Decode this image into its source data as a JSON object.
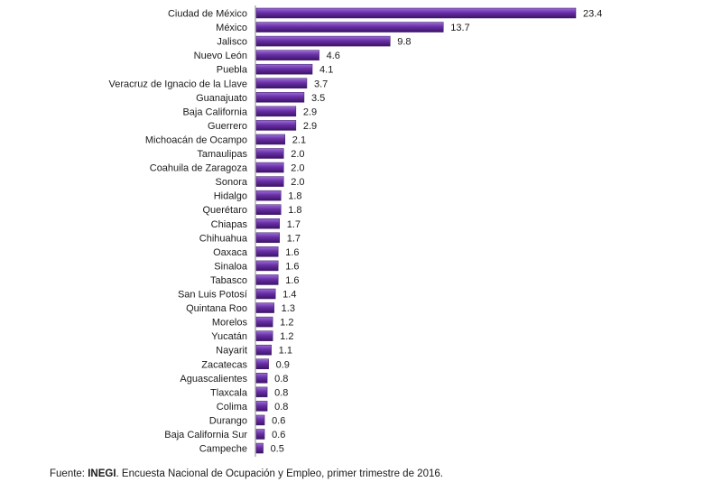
{
  "chart_data": {
    "type": "bar",
    "orientation": "horizontal",
    "categories": [
      "Ciudad de México",
      "México",
      "Jalisco",
      "Nuevo León",
      "Puebla",
      "Veracruz de Ignacio de la Llave",
      "Guanajuato",
      "Baja California",
      "Guerrero",
      "Michoacán de Ocampo",
      "Tamaulipas",
      "Coahuila de Zaragoza",
      "Sonora",
      "Hidalgo",
      "Querétaro",
      "Chiapas",
      "Chihuahua",
      "Oaxaca",
      "Sinaloa",
      "Tabasco",
      "San Luis Potosí",
      "Quintana Roo",
      "Morelos",
      "Yucatán",
      "Nayarit",
      "Zacatecas",
      "Aguascalientes",
      "Tlaxcala",
      "Colima",
      "Durango",
      "Baja California Sur",
      "Campeche"
    ],
    "values": [
      23.4,
      13.7,
      9.8,
      4.6,
      4.1,
      3.7,
      3.5,
      2.9,
      2.9,
      2.1,
      2.0,
      2.0,
      2.0,
      1.8,
      1.8,
      1.7,
      1.7,
      1.6,
      1.6,
      1.6,
      1.4,
      1.3,
      1.2,
      1.2,
      1.1,
      0.9,
      0.8,
      0.8,
      0.8,
      0.6,
      0.6,
      0.5
    ],
    "value_labels": [
      "23.4",
      "13.7",
      "9.8",
      "4.6",
      "4.1",
      "3.7",
      "3.5",
      "2.9",
      "2.9",
      "2.1",
      "2.0",
      "2.0",
      "2.0",
      "1.8",
      "1.8",
      "1.7",
      "1.7",
      "1.6",
      "1.6",
      "1.6",
      "1.4",
      "1.3",
      "1.2",
      "1.2",
      "1.1",
      "0.9",
      "0.8",
      "0.8",
      "0.8",
      "0.6",
      "0.6",
      "0.5"
    ],
    "xlim": [
      0,
      23.4
    ],
    "grid": false,
    "bar_color": "#6a2fa8",
    "bar_highlight": "#9b6fd6",
    "bar_shadow": "#3c1466"
  },
  "source": {
    "prefix": "Fuente: ",
    "org": "INEGI",
    "text": ". Encuesta Nacional de Ocupación y Empleo, primer trimestre de 2016."
  }
}
